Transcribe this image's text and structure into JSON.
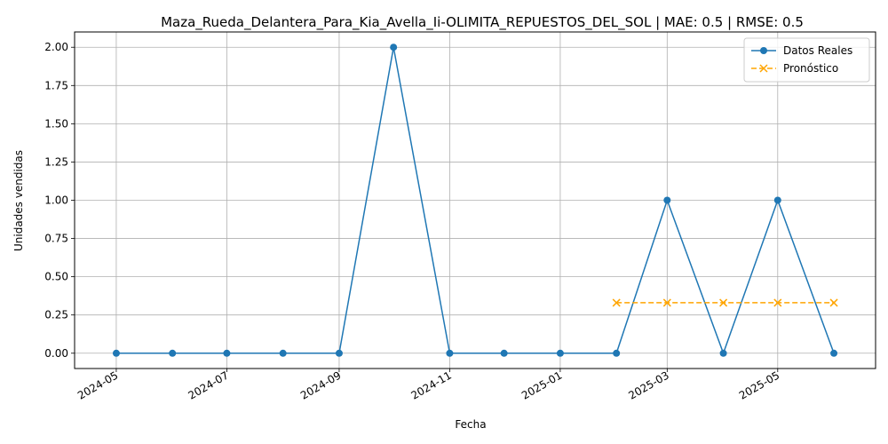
{
  "chart_data": {
    "type": "line",
    "title": "Maza_Rueda_Delantera_Para_Kia_Avella_Ii-OLIMITA_REPUESTOS_DEL_SOL | MAE: 0.5 | RMSE: 0.5",
    "xlabel": "Fecha",
    "ylabel": "Unidades vendidas",
    "ylim": [
      -0.1,
      2.1
    ],
    "xlim": [
      "2024-04-08",
      "2025-06-24"
    ],
    "grid": true,
    "legend_position": "top-right",
    "x_ticks": [
      "2024-05",
      "2024-07",
      "2024-09",
      "2024-11",
      "2025-01",
      "2025-03",
      "2025-05"
    ],
    "x_tick_dates": [
      "2024-05-01",
      "2024-07-01",
      "2024-09-01",
      "2024-11-01",
      "2025-01-01",
      "2025-03-01",
      "2025-05-01"
    ],
    "y_ticks": [
      "0.00",
      "0.25",
      "0.50",
      "0.75",
      "1.00",
      "1.25",
      "1.50",
      "1.75",
      "2.00"
    ],
    "y_tick_values": [
      0,
      0.25,
      0.5,
      0.75,
      1.0,
      1.25,
      1.5,
      1.75,
      2.0
    ],
    "series": [
      {
        "name": "Datos Reales",
        "color": "#1f77b4",
        "marker": "circle",
        "linestyle": "solid",
        "x": [
          "2024-05-01",
          "2024-06-01",
          "2024-07-01",
          "2024-08-01",
          "2024-09-01",
          "2024-10-01",
          "2024-11-01",
          "2024-12-01",
          "2025-01-01",
          "2025-02-01",
          "2025-03-01",
          "2025-04-01",
          "2025-05-01",
          "2025-06-01"
        ],
        "values": [
          0,
          0,
          0,
          0,
          0,
          2,
          0,
          0,
          0,
          0,
          1,
          0,
          1,
          0
        ]
      },
      {
        "name": "Pronóstico",
        "color": "#ffa500",
        "marker": "x",
        "linestyle": "dashed",
        "x": [
          "2025-02-01",
          "2025-03-01",
          "2025-04-01",
          "2025-05-01",
          "2025-06-01"
        ],
        "values": [
          0.33,
          0.33,
          0.33,
          0.33,
          0.33
        ]
      }
    ]
  }
}
